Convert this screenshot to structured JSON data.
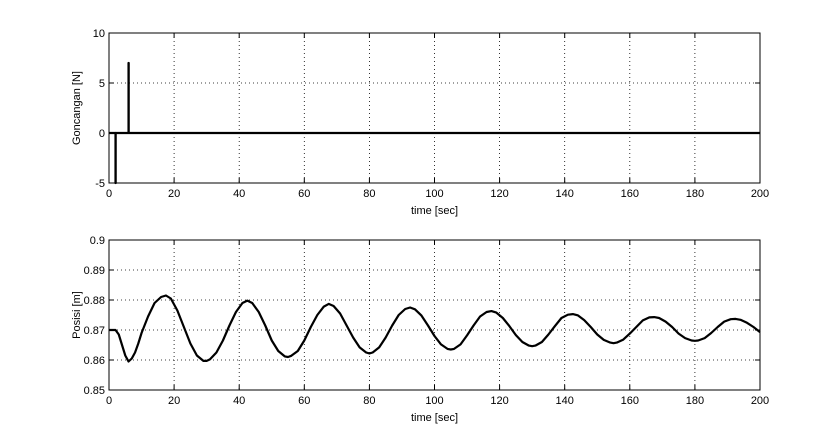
{
  "chart_data": [
    {
      "type": "line",
      "title": "",
      "xlabel": "time [sec]",
      "ylabel": "Goncangan [N]",
      "xlim": [
        0,
        200
      ],
      "ylim": [
        -5,
        10
      ],
      "xticks": [
        0,
        20,
        40,
        60,
        80,
        100,
        120,
        140,
        160,
        180,
        200
      ],
      "yticks": [
        -5,
        0,
        5,
        10
      ],
      "grid": true,
      "series": [
        {
          "color": "#000000",
          "x": [
            0,
            2,
            2,
            2.05,
            2.05,
            6,
            6,
            6.05,
            6.05,
            200
          ],
          "y": [
            0,
            0,
            -5,
            -5,
            0,
            0,
            7,
            7,
            0,
            0
          ]
        }
      ]
    },
    {
      "type": "line",
      "title": "",
      "xlabel": "time [sec]",
      "ylabel": "Posisi [m]",
      "xlim": [
        0,
        200
      ],
      "ylim": [
        0.85,
        0.9
      ],
      "xticks": [
        0,
        20,
        40,
        60,
        80,
        100,
        120,
        140,
        160,
        180,
        200
      ],
      "yticks": [
        0.85,
        0.86,
        0.87,
        0.88,
        0.89,
        0.9
      ],
      "grid": true,
      "series": [
        {
          "color": "#000000",
          "x": [
            0,
            2,
            3,
            4,
            5,
            6,
            7,
            8,
            9,
            10,
            12,
            14,
            16,
            17.5,
            19,
            21,
            23,
            25,
            27,
            29,
            30,
            31,
            33,
            35,
            37,
            39,
            41,
            42.5,
            44,
            46,
            48,
            50,
            52,
            54,
            55,
            56,
            58,
            60,
            62,
            64,
            66,
            67.5,
            69,
            71,
            73,
            75,
            77,
            79,
            80,
            81,
            83,
            85,
            87,
            89,
            91,
            92.5,
            94,
            96,
            98,
            100,
            102,
            104,
            105,
            106,
            108,
            110,
            112,
            114,
            116,
            117.5,
            119,
            121,
            123,
            125,
            127,
            129,
            130,
            131,
            133,
            135,
            137,
            139,
            141,
            142.5,
            144,
            146,
            148,
            150,
            152,
            154,
            155,
            156,
            158,
            160,
            162,
            164,
            166,
            167.5,
            169,
            171,
            173,
            175,
            177,
            179,
            180,
            181,
            183,
            185,
            187,
            189,
            191,
            192.5,
            194,
            196,
            198,
            200
          ],
          "y": [
            0.87,
            0.87,
            0.8685,
            0.865,
            0.8615,
            0.8595,
            0.8605,
            0.8625,
            0.8655,
            0.869,
            0.8745,
            0.879,
            0.881,
            0.8815,
            0.8805,
            0.8765,
            0.871,
            0.8655,
            0.8615,
            0.8597,
            0.8597,
            0.8602,
            0.8625,
            0.8665,
            0.8715,
            0.876,
            0.879,
            0.8798,
            0.879,
            0.876,
            0.8715,
            0.8665,
            0.863,
            0.8612,
            0.861,
            0.8614,
            0.863,
            0.8665,
            0.871,
            0.875,
            0.8778,
            0.8787,
            0.878,
            0.8755,
            0.8715,
            0.8675,
            0.8642,
            0.8625,
            0.8622,
            0.8625,
            0.8642,
            0.8675,
            0.8715,
            0.875,
            0.877,
            0.8775,
            0.8769,
            0.8748,
            0.8715,
            0.868,
            0.8652,
            0.8637,
            0.8635,
            0.8637,
            0.8652,
            0.8682,
            0.8715,
            0.8745,
            0.876,
            0.8763,
            0.8758,
            0.874,
            0.8713,
            0.8683,
            0.866,
            0.8648,
            0.8646,
            0.8648,
            0.866,
            0.8685,
            0.8713,
            0.874,
            0.8751,
            0.8753,
            0.8749,
            0.8733,
            0.871,
            0.8685,
            0.8667,
            0.8658,
            0.8656,
            0.8658,
            0.8668,
            0.8688,
            0.871,
            0.8732,
            0.8742,
            0.8743,
            0.874,
            0.8728,
            0.871,
            0.8688,
            0.8673,
            0.8665,
            0.8664,
            0.8665,
            0.8673,
            0.869,
            0.871,
            0.8728,
            0.8736,
            0.8737,
            0.8734,
            0.8724,
            0.871,
            0.8693
          ]
        }
      ]
    }
  ]
}
